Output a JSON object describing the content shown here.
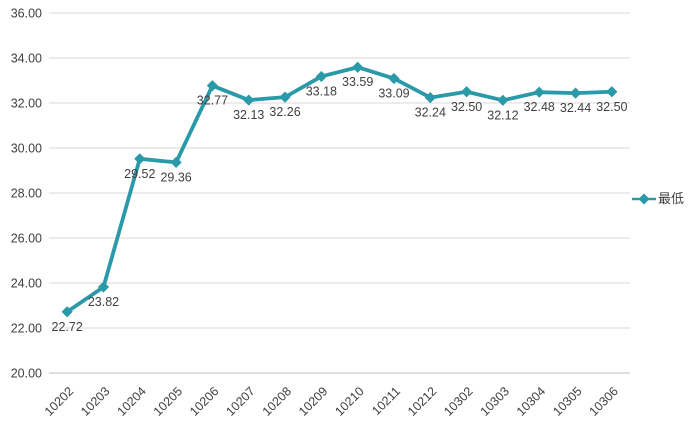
{
  "chart_data": {
    "type": "line",
    "title": "",
    "xlabel": "",
    "ylabel": "",
    "categories": [
      "10202",
      "10203",
      "10204",
      "10205",
      "10206",
      "10207",
      "10208",
      "10209",
      "10210",
      "10211",
      "10212",
      "10302",
      "10303",
      "10304",
      "10305",
      "10306"
    ],
    "series": [
      {
        "name": "最低",
        "values": [
          22.72,
          23.82,
          29.52,
          29.36,
          32.77,
          32.13,
          32.26,
          33.18,
          33.59,
          33.09,
          32.24,
          32.5,
          32.12,
          32.48,
          32.44,
          32.5
        ]
      }
    ],
    "ylim": [
      20,
      36
    ],
    "ytick_step": 2,
    "tick_decimals": 2,
    "grid": "horizontal",
    "legend_position": "right-middle",
    "data_label_position": "below-point",
    "marker": "diamond",
    "colors": {
      "series": "#2A9AA8",
      "gridline": "#D9D9D9",
      "axis_line": "#BFBFBF",
      "tick_text": "#404040",
      "data_label_text": "#3F3F3F",
      "background": "#FFFFFF"
    }
  }
}
